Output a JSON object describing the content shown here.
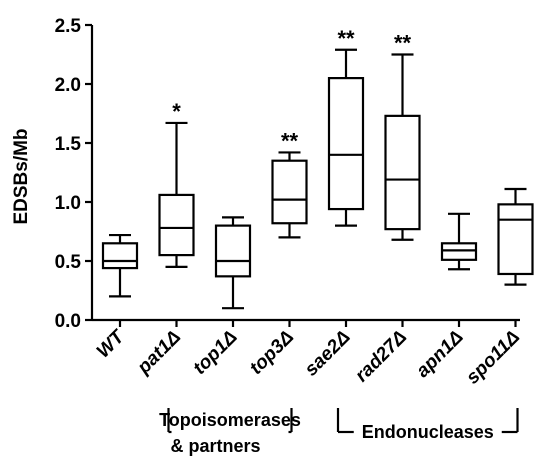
{
  "chart_data": {
    "type": "box",
    "ylabel": "EDSBs/Mb",
    "ylim": [
      0,
      2.5
    ],
    "yticks": [
      "0.0",
      "0.5",
      "1.0",
      "1.5",
      "2.0",
      "2.5"
    ],
    "categories": [
      "WT",
      "pat1",
      "top1",
      "top3",
      "sae2",
      "rad27",
      "apn1",
      "spo11"
    ],
    "delta_suffix": "Δ",
    "boxes": [
      {
        "category": "WT",
        "min": 0.2,
        "q1": 0.44,
        "median": 0.5,
        "q3": 0.65,
        "max": 0.72,
        "sig": ""
      },
      {
        "category": "pat1",
        "min": 0.45,
        "q1": 0.55,
        "median": 0.78,
        "q3": 1.06,
        "max": 1.67,
        "sig": "*"
      },
      {
        "category": "top1",
        "min": 0.1,
        "q1": 0.37,
        "median": 0.5,
        "q3": 0.8,
        "max": 0.87,
        "sig": ""
      },
      {
        "category": "top3",
        "min": 0.7,
        "q1": 0.82,
        "median": 1.02,
        "q3": 1.35,
        "max": 1.42,
        "sig": "**"
      },
      {
        "category": "sae2",
        "min": 0.8,
        "q1": 0.94,
        "median": 1.4,
        "q3": 2.05,
        "max": 2.29,
        "sig": "**"
      },
      {
        "category": "rad27",
        "min": 0.68,
        "q1": 0.77,
        "median": 1.19,
        "q3": 1.73,
        "max": 2.25,
        "sig": "**"
      },
      {
        "category": "apn1",
        "min": 0.43,
        "q1": 0.51,
        "median": 0.59,
        "q3": 0.65,
        "max": 0.9,
        "sig": ""
      },
      {
        "category": "spo11",
        "min": 0.3,
        "q1": 0.39,
        "median": 0.85,
        "q3": 0.98,
        "max": 1.11,
        "sig": ""
      }
    ],
    "groups": [
      {
        "lines": [
          "Topoisomerases",
          "& partners"
        ],
        "from": "pat1",
        "to": "top3"
      },
      {
        "lines": [
          "Endonucleases"
        ],
        "from": "sae2",
        "to": "spo11"
      }
    ]
  }
}
